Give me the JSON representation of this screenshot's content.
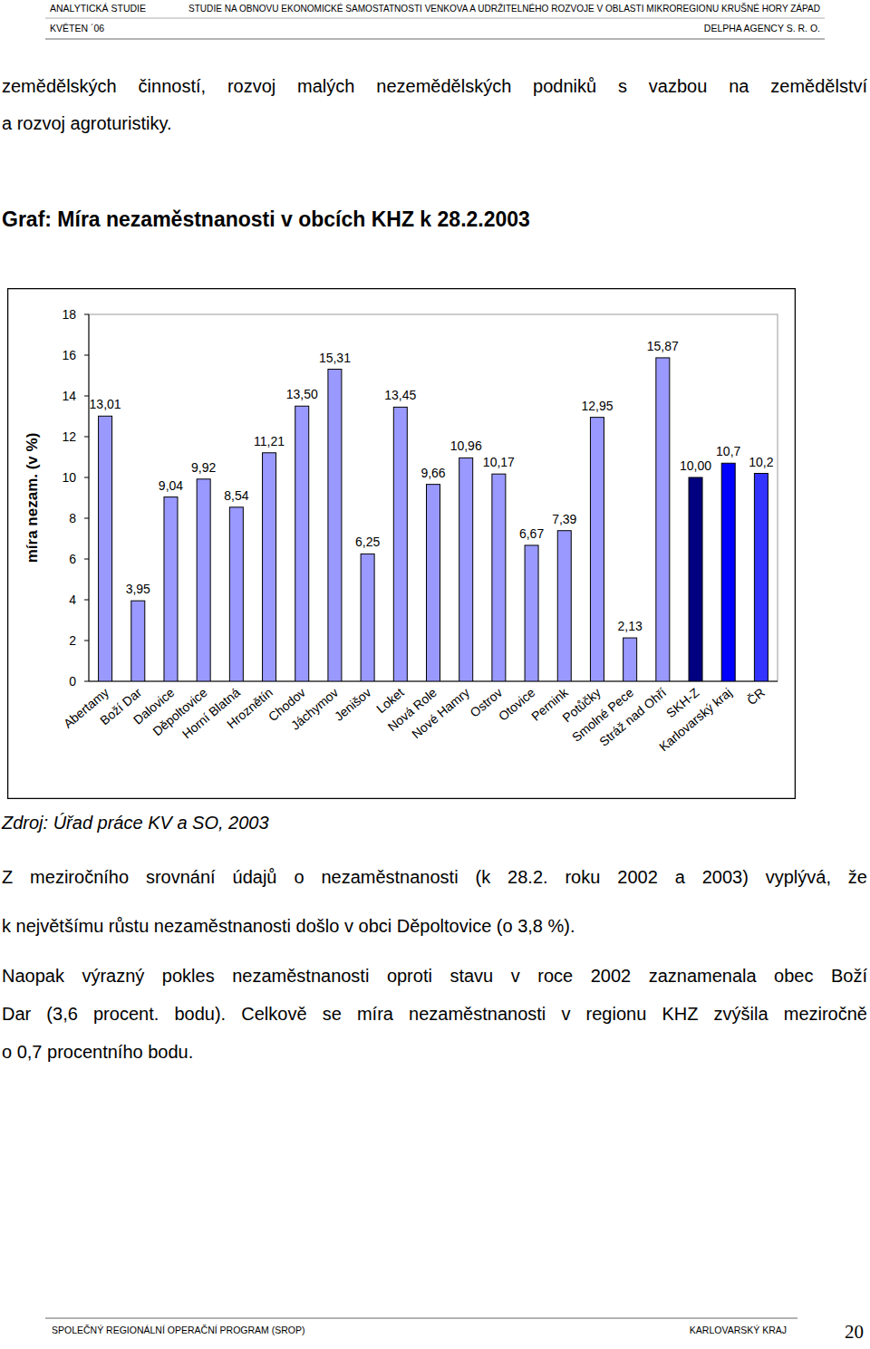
{
  "header": {
    "left_top": "ANALYTICKÁ STUDIE",
    "title": "STUDIE NA OBNOVU EKONOMICKÉ SAMOSTATNOSTI VENKOVA A UDRŽITELNÉHO ROZVOJE V OBLASTI MIKROREGIONU KRUŠNÉ HORY ZÁPAD",
    "left_bottom": "KVĚTEN ´06",
    "right_bottom": "DELPHA AGENCY S. R. O."
  },
  "intro": [
    "zemědělských činností, rozvoj malých nezemědělských podniků s vazbou na zemědělství",
    "a rozvoj agroturistiky."
  ],
  "chart_data": {
    "type": "bar",
    "title": "Graf: Míra nezaměstnanosti v obcích KHZ k 28.2.2003",
    "y_label": "míra nezam. (v %)",
    "categories": [
      "Abertamy",
      "Boží Dar",
      "Dalovice",
      "Děpoltovice",
      "Horní Blatná",
      "Hroznětín",
      "Chodov",
      "Jáchymov",
      "Jenišov",
      "Loket",
      "Nová Role",
      "Nové Hamry",
      "Ostrov",
      "Otovice",
      "Pernink",
      "Potůčky",
      "Smolné Pece",
      "Stráž nad Ohří",
      "SKH-Z",
      "Karlovarský kraj",
      "ČR"
    ],
    "values": [
      13.01,
      3.95,
      9.04,
      9.92,
      8.54,
      11.21,
      13.5,
      15.31,
      6.25,
      13.45,
      9.66,
      10.96,
      10.17,
      6.67,
      7.39,
      12.95,
      2.13,
      15.87,
      10.0,
      10.7,
      10.2
    ],
    "value_labels": [
      "13,01",
      "3,95",
      "9,04",
      "9,92",
      "8,54",
      "11,21",
      "13,50",
      "15,31",
      "6,25",
      "13,45",
      "9,66",
      "10,96",
      "10,17",
      "6,67",
      "7,39",
      "12,95",
      "2,13",
      "15,87",
      "10,00",
      "10,7",
      "10,2"
    ],
    "colors": [
      "#9999ff",
      "#9999ff",
      "#9999ff",
      "#9999ff",
      "#9999ff",
      "#9999ff",
      "#9999ff",
      "#9999ff",
      "#9999ff",
      "#9999ff",
      "#9999ff",
      "#9999ff",
      "#9999ff",
      "#9999ff",
      "#9999ff",
      "#9999ff",
      "#9999ff",
      "#9999ff",
      "#000080",
      "#0000ff",
      "#3333ff"
    ],
    "ylim": [
      0,
      18
    ],
    "yticks": [
      0,
      2,
      4,
      6,
      8,
      10,
      12,
      14,
      16,
      18
    ],
    "grid": false,
    "data_labels": true
  },
  "source": "Zdroj: Úřad práce KV a SO, 2003",
  "paragraphs": [
    [
      "Z meziročního srovnání údajů o nezaměstnanosti (k 28.2. roku 2002 a 2003) vyplývá, že",
      "k největšímu růstu nezaměstnanosti došlo v obci Děpoltovice (o 3,8 %)."
    ],
    [
      "Naopak výrazný pokles nezaměstnanosti oproti stavu v roce 2002 zaznamenala obec Boží",
      "Dar (3,6 procent. bodu). Celkově se míra nezaměstnanosti v regionu KHZ zvýšila meziročně",
      "o 0,7 procentního bodu."
    ]
  ],
  "footer": {
    "left": "SPOLEČNÝ REGIONÁLNÍ OPERAČNÍ PROGRAM (SROP)",
    "right": "KARLOVARSKÝ KRAJ",
    "page": "20"
  }
}
